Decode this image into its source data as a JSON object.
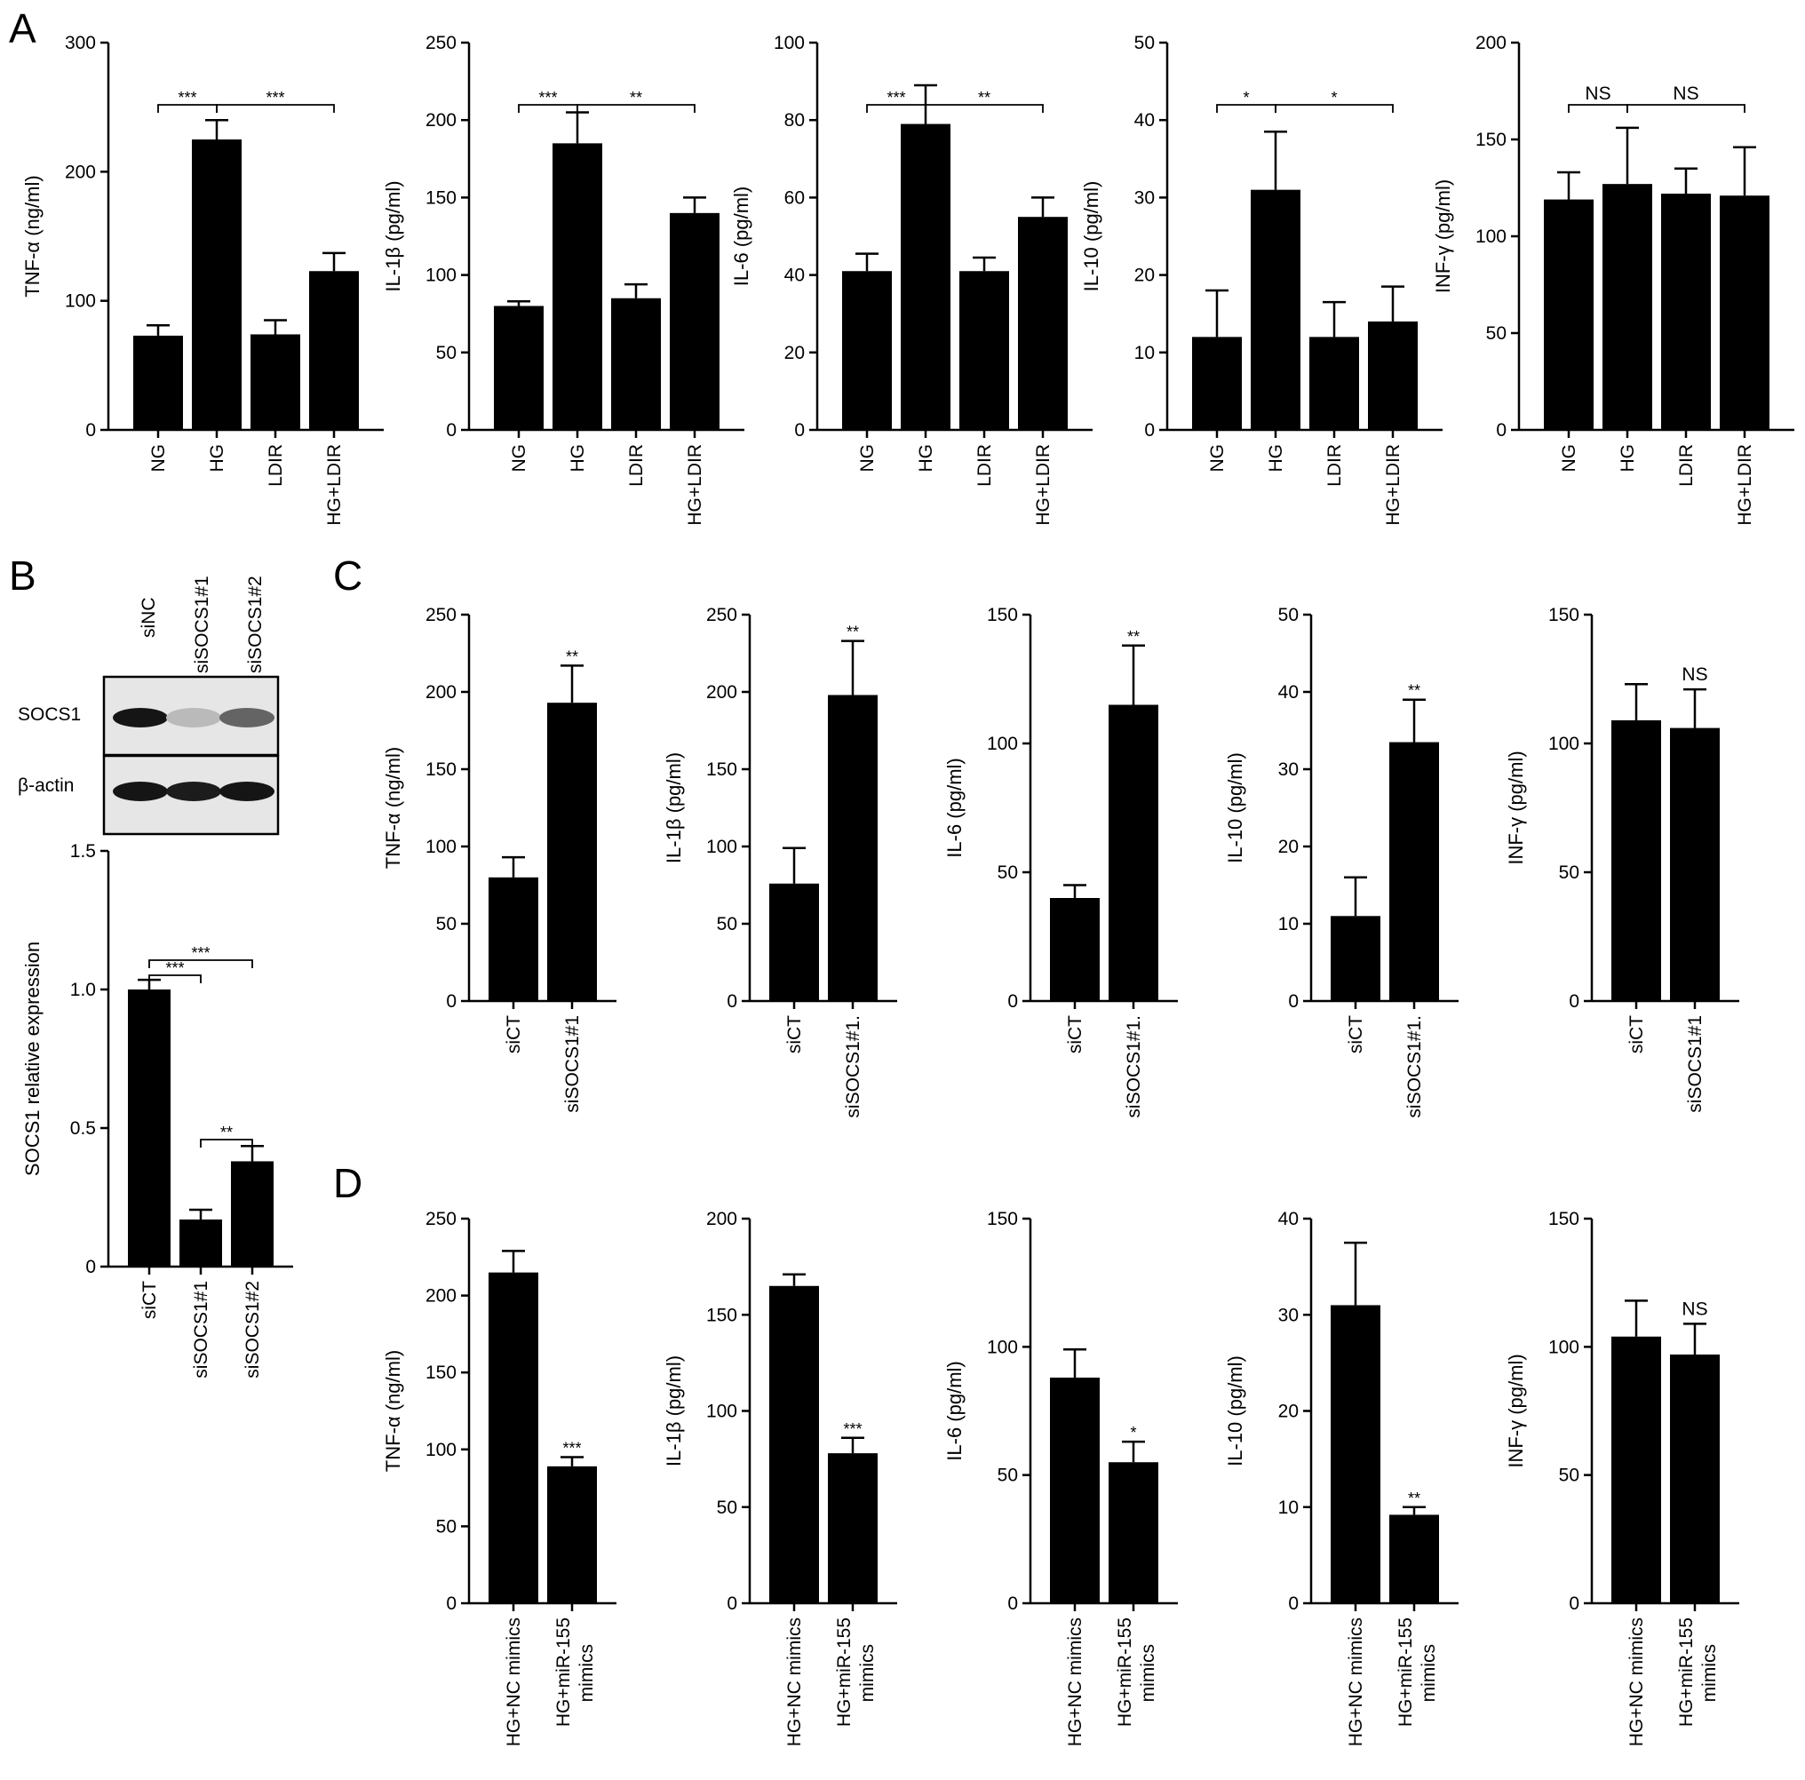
{
  "panel_labels": {
    "A": "A",
    "B": "B",
    "C": "C",
    "D": "D"
  },
  "western_blot": {
    "lanes": [
      "siNC",
      "siSOCS1#1",
      "siSOCS1#2"
    ],
    "rows": [
      "SOCS1",
      "β-actin"
    ],
    "band_intensity": {
      "SOCS1": [
        0.95,
        0.22,
        0.6
      ],
      "β-actin": [
        0.95,
        0.92,
        0.95
      ]
    }
  },
  "chart_data": [
    {
      "id": "A1",
      "type": "bar",
      "ylabel": "TNF-α (ng/ml)",
      "categories": [
        "NG",
        "HG",
        "LDIR",
        "HG+LDIR"
      ],
      "values": [
        73,
        225,
        74,
        123
      ],
      "errors": [
        8,
        15,
        11,
        14
      ],
      "ylim": [
        0,
        300
      ],
      "yticks": [
        0,
        100,
        200,
        300
      ],
      "comparisons": [
        {
          "from": 0,
          "to": 1,
          "label": "***"
        },
        {
          "from": 1,
          "to": 3,
          "label": "***"
        }
      ]
    },
    {
      "id": "A2",
      "type": "bar",
      "ylabel": "IL-1β (pg/ml)",
      "categories": [
        "NG",
        "HG",
        "LDIR",
        "HG+LDIR"
      ],
      "values": [
        80,
        185,
        85,
        140
      ],
      "errors": [
        3,
        20,
        9,
        10
      ],
      "ylim": [
        0,
        250
      ],
      "yticks": [
        0,
        50,
        100,
        150,
        200,
        250
      ],
      "comparisons": [
        {
          "from": 0,
          "to": 1,
          "label": "***"
        },
        {
          "from": 1,
          "to": 3,
          "label": "**"
        }
      ]
    },
    {
      "id": "A3",
      "type": "bar",
      "ylabel": "IL-6 (pg/ml)",
      "categories": [
        "NG",
        "HG",
        "LDIR",
        "HG+LDIR"
      ],
      "values": [
        41,
        79,
        41,
        55
      ],
      "errors": [
        4.5,
        10,
        3.5,
        5
      ],
      "ylim": [
        0,
        100
      ],
      "yticks": [
        0,
        20,
        40,
        60,
        80,
        100
      ],
      "comparisons": [
        {
          "from": 0,
          "to": 1,
          "label": "***"
        },
        {
          "from": 1,
          "to": 3,
          "label": "**"
        }
      ]
    },
    {
      "id": "A4",
      "type": "bar",
      "ylabel": "IL-10 (pg/ml)",
      "categories": [
        "NG",
        "HG",
        "LDIR",
        "HG+LDIR"
      ],
      "values": [
        12,
        31,
        12,
        14
      ],
      "errors": [
        6,
        7.5,
        4.5,
        4.5
      ],
      "ylim": [
        0,
        50
      ],
      "yticks": [
        0,
        10,
        20,
        30,
        40,
        50
      ],
      "comparisons": [
        {
          "from": 0,
          "to": 1,
          "label": "*"
        },
        {
          "from": 1,
          "to": 3,
          "label": "*"
        }
      ]
    },
    {
      "id": "A5",
      "type": "bar",
      "ylabel": "INF-γ (pg/ml)",
      "categories": [
        "NG",
        "HG",
        "LDIR",
        "HG+LDIR"
      ],
      "values": [
        119,
        127,
        122,
        121
      ],
      "errors": [
        14,
        29,
        13,
        25
      ],
      "ylim": [
        0,
        200
      ],
      "yticks": [
        0,
        50,
        100,
        150,
        200
      ],
      "comparisons": [
        {
          "from": 0,
          "to": 1,
          "label": "NS"
        },
        {
          "from": 1,
          "to": 3,
          "label": "NS"
        }
      ]
    },
    {
      "id": "B",
      "type": "bar",
      "ylabel": "SOCS1 relative expression",
      "categories": [
        "siCT",
        "siSOCS1#1",
        "siSOCS1#2"
      ],
      "values": [
        1.0,
        0.17,
        0.38
      ],
      "errors": [
        0.035,
        0.035,
        0.055
      ],
      "ylim": [
        0,
        1.5
      ],
      "yticks": [
        0,
        0.5,
        1.0,
        1.5
      ],
      "ytick_labels": [
        "0",
        "0.5",
        "1.0",
        "1.5"
      ],
      "comparisons": [
        {
          "from": 0,
          "to": 1,
          "label": "***"
        },
        {
          "from": 0,
          "to": 2,
          "label": "***"
        },
        {
          "from": 1,
          "to": 2,
          "label": "**"
        }
      ]
    },
    {
      "id": "C1",
      "type": "bar",
      "ylabel": "TNF-α (ng/ml)",
      "categories": [
        "siCT",
        "siSOCS1#1"
      ],
      "values": [
        80,
        193
      ],
      "errors": [
        13,
        24
      ],
      "ylim": [
        0,
        250
      ],
      "yticks": [
        0,
        50,
        100,
        150,
        200,
        250
      ],
      "stars": [
        null,
        "**"
      ]
    },
    {
      "id": "C2",
      "type": "bar",
      "ylabel": "IL-1β (pg/ml)",
      "categories": [
        "siCT",
        "siSOCS1#1."
      ],
      "values": [
        76,
        198
      ],
      "errors": [
        23,
        35
      ],
      "ylim": [
        0,
        250
      ],
      "yticks": [
        0,
        50,
        100,
        150,
        200,
        250
      ],
      "stars": [
        null,
        "**"
      ]
    },
    {
      "id": "C3",
      "type": "bar",
      "ylabel": "IL-6 (pg/ml)",
      "categories": [
        "siCT",
        "siSOCS1#1."
      ],
      "values": [
        40,
        115
      ],
      "errors": [
        5,
        23
      ],
      "ylim": [
        0,
        150
      ],
      "yticks": [
        0,
        50,
        100,
        150
      ],
      "stars": [
        null,
        "**"
      ]
    },
    {
      "id": "C4",
      "type": "bar",
      "ylabel": "IL-10 (pg/ml)",
      "categories": [
        "siCT",
        "siSOCS1#1."
      ],
      "values": [
        11,
        33.5
      ],
      "errors": [
        5,
        5.5
      ],
      "ylim": [
        0,
        50
      ],
      "yticks": [
        0,
        10,
        20,
        30,
        40,
        50
      ],
      "stars": [
        null,
        "**"
      ]
    },
    {
      "id": "C5",
      "type": "bar",
      "ylabel": "INF-γ (pg/ml)",
      "categories": [
        "siCT",
        "siSOCS1#1"
      ],
      "values": [
        109,
        106
      ],
      "errors": [
        14,
        15
      ],
      "ylim": [
        0,
        150
      ],
      "yticks": [
        0,
        50,
        100,
        150
      ],
      "stars": [
        null,
        "NS"
      ]
    },
    {
      "id": "D1",
      "type": "bar",
      "ylabel": "TNF-α (ng/ml)",
      "categories": [
        "HG+NC mimics",
        "HG+miR-155 mimics"
      ],
      "values": [
        215,
        89
      ],
      "errors": [
        14,
        6
      ],
      "ylim": [
        0,
        250
      ],
      "yticks": [
        0,
        50,
        100,
        150,
        200,
        250
      ],
      "stars": [
        null,
        "***"
      ]
    },
    {
      "id": "D2",
      "type": "bar",
      "ylabel": "IL-1β (pg/ml)",
      "categories": [
        "HG+NC mimics",
        "HG+miR-155 mimics"
      ],
      "values": [
        165,
        78
      ],
      "errors": [
        6,
        8
      ],
      "ylim": [
        0,
        200
      ],
      "yticks": [
        0,
        50,
        100,
        150,
        200
      ],
      "stars": [
        null,
        "***"
      ]
    },
    {
      "id": "D3",
      "type": "bar",
      "ylabel": "IL-6 (pg/ml)",
      "categories": [
        "HG+NC mimics",
        "HG+miR-155 mimics"
      ],
      "values": [
        88,
        55
      ],
      "errors": [
        11,
        8
      ],
      "ylim": [
        0,
        150
      ],
      "yticks": [
        0,
        50,
        100,
        150
      ],
      "stars": [
        null,
        "*"
      ]
    },
    {
      "id": "D4",
      "type": "bar",
      "ylabel": "IL-10 (pg/ml)",
      "categories": [
        "HG+NC mimics",
        "HG+miR-155 mimics"
      ],
      "values": [
        31,
        9.2
      ],
      "errors": [
        6.5,
        0.8
      ],
      "ylim": [
        0,
        40
      ],
      "yticks": [
        0,
        10,
        20,
        30,
        40
      ],
      "stars": [
        null,
        "**"
      ]
    },
    {
      "id": "D5",
      "type": "bar",
      "ylabel": "INF-γ (pg/ml)",
      "categories": [
        "HG+NC mimics",
        "HG+miR-155 mimics"
      ],
      "values": [
        104,
        97
      ],
      "errors": [
        14,
        12
      ],
      "ylim": [
        0,
        150
      ],
      "yticks": [
        0,
        50,
        100,
        150
      ],
      "stars": [
        null,
        "NS"
      ]
    }
  ]
}
